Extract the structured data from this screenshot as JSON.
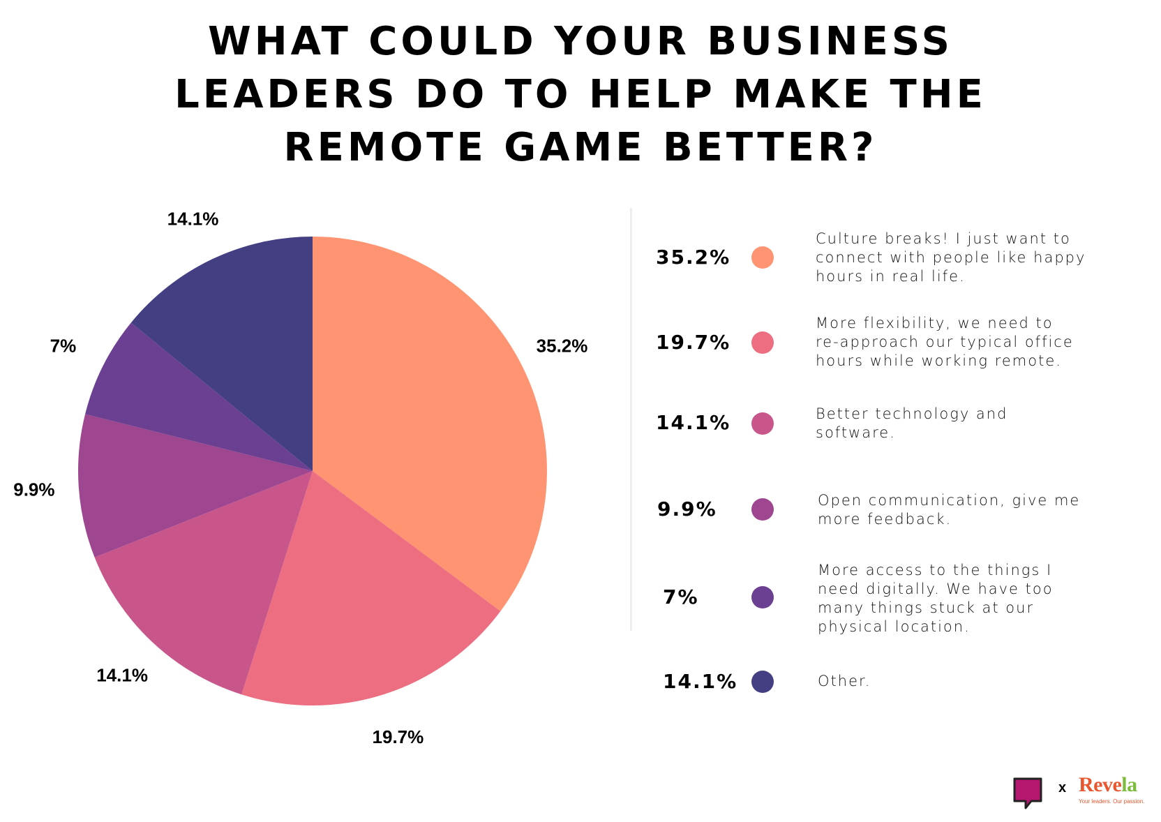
{
  "title": {
    "line1": "WHAT COULD YOUR BUSINESS",
    "line2": "LEADERS DO TO HELP MAKE THE",
    "line3": "REMOTE GAME BETTER?"
  },
  "chart_data": {
    "type": "pie",
    "title": "WHAT COULD YOUR BUSINESS LEADERS DO TO HELP MAKE THE REMOTE GAME BETTER?",
    "slices": [
      {
        "label": "Culture breaks! I just want to connect with people like happy hours in real life.",
        "value": 35.2,
        "display": "35.2%",
        "color": "#FF9473"
      },
      {
        "label": "More flexibility, we need to re-approach our typical office hours while working remote.",
        "value": 19.7,
        "display": "19.7%",
        "color": "#EC6E80"
      },
      {
        "label": "Better technology and software.",
        "value": 14.1,
        "display": "14.1%",
        "color": "#C8568A"
      },
      {
        "label": "Open communication, give me more feedback.",
        "value": 9.9,
        "display": "9.9%",
        "color": "#9E4690"
      },
      {
        "label": "More access to the things I need digitally. We have too many things stuck at our physical location.",
        "value": 7,
        "display": "7%",
        "color": "#6B3F91"
      },
      {
        "label": "Other.",
        "value": 14.1,
        "display": "14.1%",
        "color": "#443F82"
      }
    ]
  },
  "legend": [
    {
      "pct": "35.2%",
      "lines": [
        "Culture breaks! I just want to",
        "connect with people like happy",
        "hours in real life."
      ]
    },
    {
      "pct": "19.7%",
      "lines": [
        "More flexibility, we need to",
        "re-approach our typical office",
        "hours while working remote."
      ]
    },
    {
      "pct": "14.1%",
      "lines": [
        "Better technology and",
        "software."
      ]
    },
    {
      "pct": "9.9%",
      "lines": [
        "Open communication, give me",
        "more feedback."
      ]
    },
    {
      "pct": "7%",
      "lines": [
        "More access to the things I",
        "need digitally. We have too",
        "many things stuck at our",
        "physical location."
      ]
    },
    {
      "pct": "14.1%",
      "lines": [
        "Other."
      ]
    }
  ],
  "footer": {
    "separator": "x",
    "brand_main": "Reve",
    "brand_accent": "la",
    "brand_tagline": "Your leaders. Our passion."
  }
}
